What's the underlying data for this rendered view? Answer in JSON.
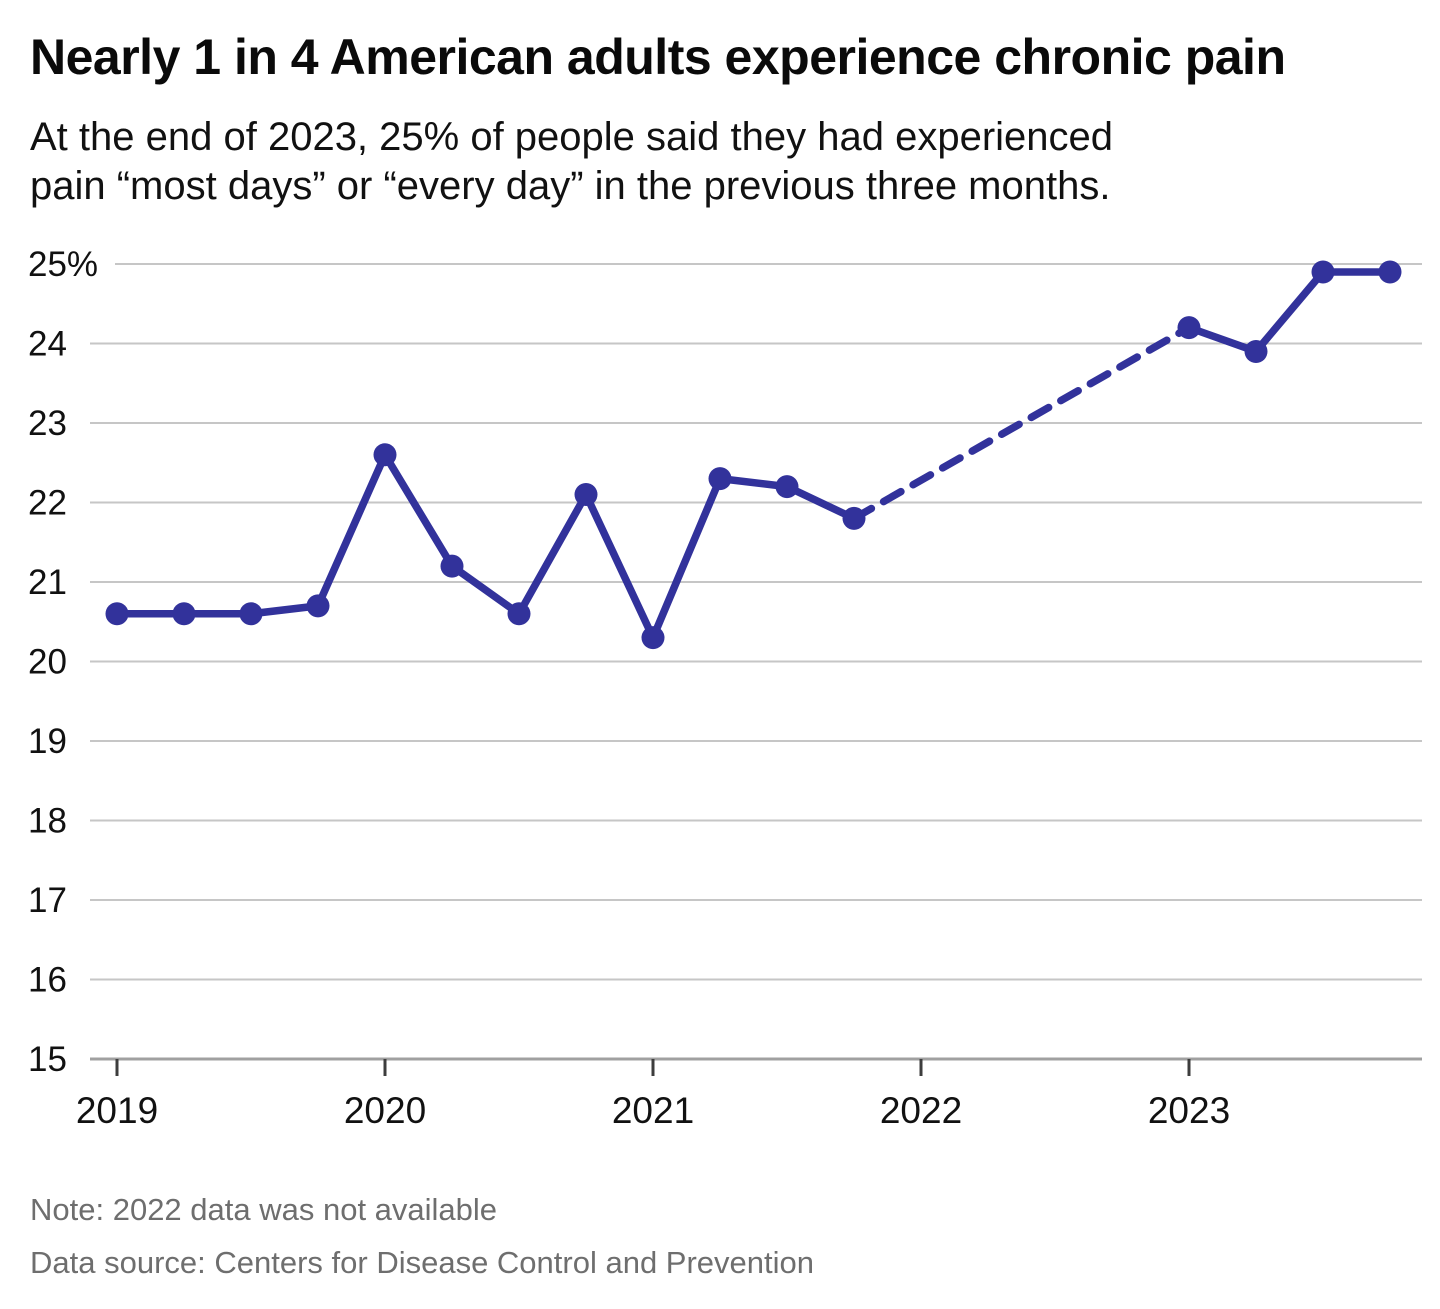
{
  "header": {
    "title": "Nearly 1 in 4 American adults experience chronic pain",
    "subtitle_lines": [
      "At the end of 2023, 25% of people said they had experienced",
      "pain “most days” or “every day” in the previous three months."
    ]
  },
  "footer": {
    "note": "Note: 2022 data was not available",
    "source": "Data source: Centers for Disease Control and Prevention"
  },
  "chart_data": {
    "type": "line",
    "title": "Nearly 1 in 4 American adults experience chronic pain",
    "subtitle": "At the end of 2023, 25% of people said they had experienced pain “most days” or “every day” in the previous three months.",
    "unit": "percent of adults",
    "ylim": [
      15,
      25
    ],
    "grid": true,
    "line_color": "#32329B",
    "gridline_color": "#c6c6c6",
    "axis_line_color": "#a0a0a0",
    "tick_color": "#3d3d3d",
    "label_color": "#111111",
    "points": [
      {
        "year": 2019,
        "quarter": 1,
        "value": 20.6
      },
      {
        "year": 2019,
        "quarter": 2,
        "value": 20.6
      },
      {
        "year": 2019,
        "quarter": 3,
        "value": 20.6
      },
      {
        "year": 2019,
        "quarter": 4,
        "value": 20.7
      },
      {
        "year": 2020,
        "quarter": 1,
        "value": 22.6
      },
      {
        "year": 2020,
        "quarter": 2,
        "value": 21.2
      },
      {
        "year": 2020,
        "quarter": 3,
        "value": 20.6
      },
      {
        "year": 2020,
        "quarter": 4,
        "value": 22.1
      },
      {
        "year": 2021,
        "quarter": 1,
        "value": 20.3
      },
      {
        "year": 2021,
        "quarter": 2,
        "value": 22.3
      },
      {
        "year": 2021,
        "quarter": 3,
        "value": 22.2
      },
      {
        "year": 2021,
        "quarter": 4,
        "value": 21.8
      },
      {
        "year": 2023,
        "quarter": 1,
        "value": 24.2
      },
      {
        "year": 2023,
        "quarter": 2,
        "value": 23.9
      },
      {
        "year": 2023,
        "quarter": 3,
        "value": 24.9
      },
      {
        "year": 2023,
        "quarter": 4,
        "value": 24.9
      }
    ],
    "segments": [
      {
        "style": "solid",
        "from": 0,
        "to": 11
      },
      {
        "style": "dashed",
        "from": 11,
        "to": 12
      },
      {
        "style": "solid",
        "from": 12,
        "to": 15
      }
    ],
    "yticks": [
      {
        "value": 25,
        "label": "25%"
      },
      {
        "value": 24,
        "label": "24"
      },
      {
        "value": 23,
        "label": "23"
      },
      {
        "value": 22,
        "label": "22"
      },
      {
        "value": 21,
        "label": "21"
      },
      {
        "value": 20,
        "label": "20"
      },
      {
        "value": 19,
        "label": "19"
      },
      {
        "value": 18,
        "label": "18"
      },
      {
        "value": 17,
        "label": "17"
      },
      {
        "value": 16,
        "label": "16"
      },
      {
        "value": 15,
        "label": "15"
      }
    ],
    "xticks": [
      {
        "year": 2019,
        "label": "2019"
      },
      {
        "year": 2020,
        "label": "2020"
      },
      {
        "year": 2021,
        "label": "2021"
      },
      {
        "year": 2022,
        "label": "2022"
      },
      {
        "year": 2023,
        "label": "2023"
      }
    ]
  }
}
